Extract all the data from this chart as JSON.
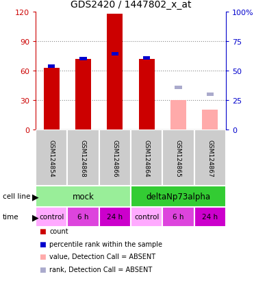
{
  "title": "GDS2420 / 1447802_x_at",
  "samples": [
    "GSM124854",
    "GSM124868",
    "GSM124866",
    "GSM124864",
    "GSM124865",
    "GSM124867"
  ],
  "count_values": [
    63,
    72,
    118,
    72,
    null,
    null
  ],
  "rank_values": [
    54,
    60,
    64,
    61,
    null,
    null
  ],
  "count_absent": [
    null,
    null,
    null,
    null,
    30,
    20
  ],
  "rank_absent": [
    null,
    null,
    null,
    null,
    36,
    30
  ],
  "ylim_left": [
    0,
    120
  ],
  "ylim_right": [
    0,
    100
  ],
  "yticks_left": [
    0,
    30,
    60,
    90,
    120
  ],
  "yticks_right": [
    0,
    25,
    50,
    75,
    100
  ],
  "ytick_labels_right": [
    "0",
    "25",
    "50",
    "75",
    "100%"
  ],
  "color_count": "#cc0000",
  "color_rank": "#0000cc",
  "color_count_absent": "#ffaaaa",
  "color_rank_absent": "#aaaacc",
  "cell_line_mock_color": "#99ee99",
  "cell_line_delta_color": "#33cc33",
  "time_light_color": "#ffaaff",
  "time_mid_color": "#dd44dd",
  "time_dark_color": "#cc00cc",
  "cell_line_labels": [
    "mock",
    "deltaNp73alpha"
  ],
  "time_labels": [
    "control",
    "6 h",
    "24 h",
    "control",
    "6 h",
    "24 h"
  ],
  "time_label_colors": [
    "light",
    "mid",
    "dark",
    "light",
    "mid",
    "dark"
  ],
  "legend_items": [
    {
      "color": "#cc0000",
      "label": "count"
    },
    {
      "color": "#0000cc",
      "label": "percentile rank within the sample"
    },
    {
      "color": "#ffaaaa",
      "label": "value, Detection Call = ABSENT"
    },
    {
      "color": "#aaaacc",
      "label": "rank, Detection Call = ABSENT"
    }
  ],
  "left_axis_color": "#cc0000",
  "right_axis_color": "#0000cc",
  "gsm_bg_color": "#cccccc",
  "bar_width": 0.5
}
